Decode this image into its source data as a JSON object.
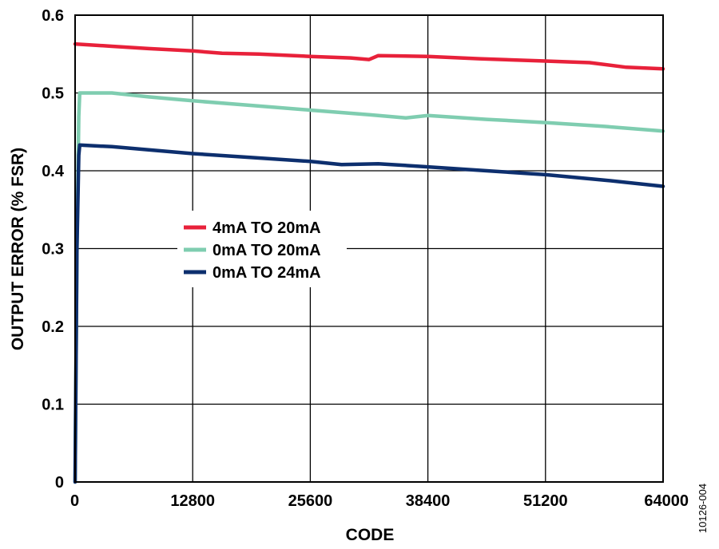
{
  "figure_id": "10126-004",
  "colors": {
    "red": "#e8213a",
    "green": "#7fcdb0",
    "navy": "#0d2f6e",
    "grid": "#000000"
  },
  "chart_data": {
    "type": "line",
    "title": "",
    "xlabel": "CODE",
    "ylabel": "OUTPUT ERROR (% FSR)",
    "xlim": [
      0,
      64000
    ],
    "ylim": [
      0,
      0.6
    ],
    "x_ticks": [
      0,
      12800,
      25600,
      38400,
      51200,
      64000
    ],
    "x_tick_labels": [
      "0",
      "12800",
      "25600",
      "38400",
      "51200",
      "64000"
    ],
    "y_ticks": [
      0,
      0.1,
      0.2,
      0.3,
      0.4,
      0.5,
      0.6
    ],
    "y_tick_labels": [
      "0",
      "0.1",
      "0.2",
      "0.3",
      "0.4",
      "0.5",
      "0.6"
    ],
    "grid": true,
    "legend_position": "center-left",
    "series": [
      {
        "name": "4mA TO 20mA",
        "color": "#e8213a",
        "points": [
          [
            0,
            0.563
          ],
          [
            4000,
            0.56
          ],
          [
            8000,
            0.557
          ],
          [
            12800,
            0.554
          ],
          [
            16000,
            0.551
          ],
          [
            20000,
            0.55
          ],
          [
            25600,
            0.547
          ],
          [
            30000,
            0.545
          ],
          [
            32000,
            0.543
          ],
          [
            33000,
            0.548
          ],
          [
            38400,
            0.547
          ],
          [
            44000,
            0.544
          ],
          [
            51200,
            0.541
          ],
          [
            56000,
            0.539
          ],
          [
            60000,
            0.533
          ],
          [
            64000,
            0.531
          ]
        ]
      },
      {
        "name": "0mA TO 20mA",
        "color": "#7fcdb0",
        "points": [
          [
            0,
            0.0
          ],
          [
            200,
            0.3
          ],
          [
            400,
            0.47
          ],
          [
            500,
            0.5
          ],
          [
            4000,
            0.5
          ],
          [
            8000,
            0.495
          ],
          [
            12800,
            0.49
          ],
          [
            19200,
            0.484
          ],
          [
            25600,
            0.478
          ],
          [
            32000,
            0.472
          ],
          [
            36000,
            0.468
          ],
          [
            38400,
            0.471
          ],
          [
            44800,
            0.466
          ],
          [
            51200,
            0.462
          ],
          [
            57600,
            0.457
          ],
          [
            64000,
            0.451
          ]
        ]
      },
      {
        "name": "0mA TO 24mA",
        "color": "#0d2f6e",
        "points": [
          [
            0,
            0.0
          ],
          [
            200,
            0.3
          ],
          [
            400,
            0.42
          ],
          [
            500,
            0.433
          ],
          [
            4000,
            0.431
          ],
          [
            8000,
            0.427
          ],
          [
            12800,
            0.422
          ],
          [
            19200,
            0.417
          ],
          [
            25600,
            0.412
          ],
          [
            29000,
            0.408
          ],
          [
            33000,
            0.409
          ],
          [
            38400,
            0.405
          ],
          [
            44800,
            0.4
          ],
          [
            51200,
            0.395
          ],
          [
            57600,
            0.388
          ],
          [
            64000,
            0.38
          ]
        ]
      }
    ]
  }
}
